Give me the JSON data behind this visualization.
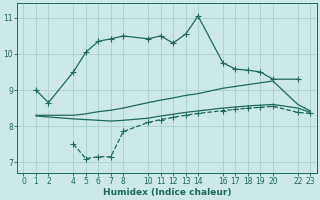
{
  "bg_color": "#cde8e8",
  "grid_color": "#aacfcf",
  "line_color": "#1a6b5a",
  "xlabel": "Humidex (Indice chaleur)",
  "xlim": [
    -0.5,
    23.5
  ],
  "ylim": [
    6.7,
    11.4
  ],
  "yticks": [
    7,
    8,
    9,
    10,
    11
  ],
  "xticks": [
    0,
    1,
    2,
    4,
    5,
    6,
    7,
    8,
    10,
    11,
    12,
    13,
    14,
    16,
    17,
    18,
    19,
    20,
    22,
    23
  ],
  "line1_x": [
    1,
    2,
    4,
    5,
    6,
    7,
    8,
    10,
    11,
    12,
    13,
    14,
    16,
    17,
    18,
    19,
    20,
    22
  ],
  "line1_y": [
    9.0,
    8.65,
    9.5,
    10.05,
    10.35,
    10.42,
    10.5,
    10.42,
    10.5,
    10.3,
    10.55,
    11.05,
    9.75,
    9.58,
    9.55,
    9.5,
    9.3,
    9.3
  ],
  "line2_x": [
    1,
    4,
    5,
    6,
    7,
    8,
    10,
    11,
    12,
    13,
    14,
    16,
    17,
    18,
    19,
    20,
    22,
    23
  ],
  "line2_y": [
    8.3,
    8.3,
    8.34,
    8.4,
    8.44,
    8.5,
    8.65,
    8.72,
    8.78,
    8.85,
    8.9,
    9.05,
    9.1,
    9.15,
    9.2,
    9.25,
    8.6,
    8.42
  ],
  "line3_x": [
    4,
    5,
    6,
    7,
    8,
    10,
    11,
    12,
    13,
    14,
    16,
    17,
    18,
    19,
    20,
    22,
    23
  ],
  "line3_y": [
    7.5,
    7.1,
    7.15,
    7.15,
    7.85,
    8.1,
    8.18,
    8.24,
    8.3,
    8.35,
    8.43,
    8.46,
    8.5,
    8.52,
    8.55,
    8.38,
    8.35
  ],
  "line4_x": [
    1,
    4,
    5,
    6,
    7,
    8,
    10,
    11,
    12,
    13,
    14,
    16,
    17,
    18,
    19,
    20,
    22,
    23
  ],
  "line4_y": [
    8.28,
    8.2,
    8.18,
    8.16,
    8.14,
    8.16,
    8.22,
    8.28,
    8.33,
    8.38,
    8.42,
    8.5,
    8.53,
    8.56,
    8.58,
    8.6,
    8.5,
    8.38
  ]
}
